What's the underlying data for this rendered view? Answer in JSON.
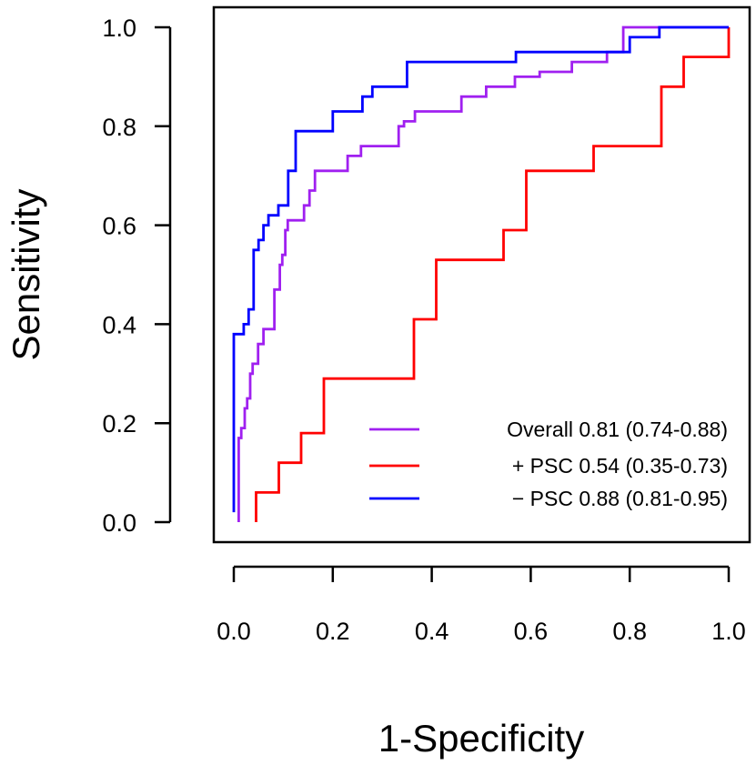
{
  "chart_data": {
    "type": "line",
    "xlabel": "1-Specificity",
    "ylabel": "Sensitivity",
    "xlim": [
      0,
      1
    ],
    "ylim": [
      0,
      1
    ],
    "x_ticks": [
      "0.0",
      "0.2",
      "0.4",
      "0.6",
      "0.8",
      "1.0"
    ],
    "y_ticks": [
      "0.0",
      "0.2",
      "0.4",
      "0.6",
      "0.8",
      "1.0"
    ],
    "grid": false,
    "legend_position": "bottom-right",
    "series": [
      {
        "name": "Overall 0.81 (0.74-0.88)",
        "color": "#a020f0",
        "points": [
          [
            0.01,
            0.0
          ],
          [
            0.01,
            0.17
          ],
          [
            0.015,
            0.17
          ],
          [
            0.015,
            0.19
          ],
          [
            0.022,
            0.19
          ],
          [
            0.022,
            0.23
          ],
          [
            0.027,
            0.23
          ],
          [
            0.027,
            0.25
          ],
          [
            0.033,
            0.25
          ],
          [
            0.033,
            0.3
          ],
          [
            0.038,
            0.3
          ],
          [
            0.038,
            0.32
          ],
          [
            0.049,
            0.32
          ],
          [
            0.049,
            0.36
          ],
          [
            0.06,
            0.36
          ],
          [
            0.06,
            0.39
          ],
          [
            0.082,
            0.39
          ],
          [
            0.082,
            0.47
          ],
          [
            0.093,
            0.47
          ],
          [
            0.093,
            0.52
          ],
          [
            0.098,
            0.52
          ],
          [
            0.098,
            0.54
          ],
          [
            0.104,
            0.54
          ],
          [
            0.104,
            0.59
          ],
          [
            0.109,
            0.59
          ],
          [
            0.109,
            0.61
          ],
          [
            0.142,
            0.61
          ],
          [
            0.142,
            0.64
          ],
          [
            0.153,
            0.64
          ],
          [
            0.153,
            0.67
          ],
          [
            0.164,
            0.67
          ],
          [
            0.164,
            0.71
          ],
          [
            0.208,
            0.71
          ],
          [
            0.208,
            0.71
          ],
          [
            0.23,
            0.71
          ],
          [
            0.23,
            0.74
          ],
          [
            0.257,
            0.74
          ],
          [
            0.257,
            0.76
          ],
          [
            0.333,
            0.76
          ],
          [
            0.333,
            0.8
          ],
          [
            0.344,
            0.8
          ],
          [
            0.344,
            0.81
          ],
          [
            0.366,
            0.81
          ],
          [
            0.366,
            0.83
          ],
          [
            0.46,
            0.83
          ],
          [
            0.46,
            0.86
          ],
          [
            0.51,
            0.86
          ],
          [
            0.51,
            0.88
          ],
          [
            0.568,
            0.88
          ],
          [
            0.568,
            0.9
          ],
          [
            0.618,
            0.9
          ],
          [
            0.618,
            0.91
          ],
          [
            0.683,
            0.91
          ],
          [
            0.683,
            0.93
          ],
          [
            0.754,
            0.93
          ],
          [
            0.754,
            0.95
          ],
          [
            0.787,
            0.95
          ],
          [
            0.787,
            1.0
          ],
          [
            1.0,
            1.0
          ]
        ]
      },
      {
        "name": "+ PSC 0.54 (0.35-0.73)",
        "color": "#ff0000",
        "points": [
          [
            0.045,
            0.0
          ],
          [
            0.045,
            0.06
          ],
          [
            0.091,
            0.06
          ],
          [
            0.091,
            0.12
          ],
          [
            0.136,
            0.12
          ],
          [
            0.136,
            0.18
          ],
          [
            0.182,
            0.18
          ],
          [
            0.182,
            0.29
          ],
          [
            0.364,
            0.29
          ],
          [
            0.364,
            0.41
          ],
          [
            0.409,
            0.41
          ],
          [
            0.409,
            0.53
          ],
          [
            0.545,
            0.53
          ],
          [
            0.545,
            0.59
          ],
          [
            0.591,
            0.59
          ],
          [
            0.591,
            0.71
          ],
          [
            0.727,
            0.71
          ],
          [
            0.727,
            0.76
          ],
          [
            0.864,
            0.76
          ],
          [
            0.864,
            0.88
          ],
          [
            0.909,
            0.88
          ],
          [
            0.909,
            0.94
          ],
          [
            1.0,
            0.94
          ],
          [
            1.0,
            1.0
          ]
        ]
      },
      {
        "name": "− PSC 0.88 (0.81-0.95)",
        "color": "#0000ff",
        "points": [
          [
            0.0,
            0.02
          ],
          [
            0.0,
            0.38
          ],
          [
            0.02,
            0.38
          ],
          [
            0.02,
            0.4
          ],
          [
            0.03,
            0.4
          ],
          [
            0.03,
            0.43
          ],
          [
            0.04,
            0.43
          ],
          [
            0.04,
            0.55
          ],
          [
            0.05,
            0.55
          ],
          [
            0.05,
            0.57
          ],
          [
            0.06,
            0.57
          ],
          [
            0.06,
            0.6
          ],
          [
            0.07,
            0.6
          ],
          [
            0.07,
            0.62
          ],
          [
            0.09,
            0.62
          ],
          [
            0.09,
            0.64
          ],
          [
            0.11,
            0.64
          ],
          [
            0.11,
            0.71
          ],
          [
            0.125,
            0.71
          ],
          [
            0.125,
            0.79
          ],
          [
            0.2,
            0.79
          ],
          [
            0.2,
            0.83
          ],
          [
            0.26,
            0.83
          ],
          [
            0.26,
            0.86
          ],
          [
            0.28,
            0.86
          ],
          [
            0.28,
            0.88
          ],
          [
            0.35,
            0.88
          ],
          [
            0.35,
            0.93
          ],
          [
            0.57,
            0.93
          ],
          [
            0.57,
            0.95
          ],
          [
            0.8,
            0.95
          ],
          [
            0.8,
            0.98
          ],
          [
            0.86,
            0.98
          ],
          [
            0.86,
            1.0
          ],
          [
            1.0,
            1.0
          ]
        ]
      }
    ]
  }
}
